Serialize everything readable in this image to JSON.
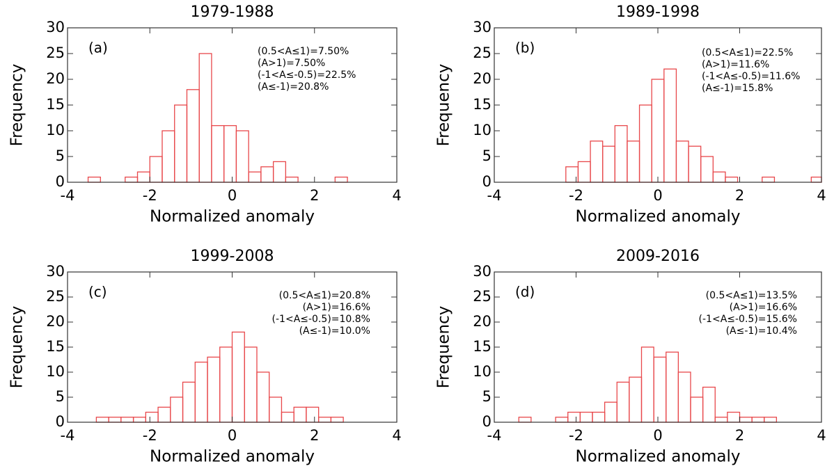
{
  "chart_data": [
    {
      "type": "histogram",
      "title": "1979-1988",
      "panel_label": "(a)",
      "x_label": "Normalized anomaly",
      "y_label": "Frequency",
      "annotations": [
        "(0.5<A≤1)=7.50%",
        "(A>1)=7.50%",
        "(-1<A≤-0.5)=22.5%",
        "(A≤-1)=20.8%"
      ],
      "bins": [
        -3.5,
        -3.2,
        -2.9,
        -2.6,
        -2.3,
        -2.0,
        -1.7,
        -1.4,
        -1.1,
        -0.8,
        -0.5,
        -0.2,
        0.1,
        0.4,
        0.7,
        1.0,
        1.3,
        1.6,
        1.9,
        2.2,
        2.5,
        2.8
      ],
      "values": [
        1,
        0,
        0,
        1,
        2,
        5,
        10,
        15,
        18,
        25,
        11,
        11,
        10,
        2,
        3,
        4,
        1,
        0,
        0,
        0,
        1
      ],
      "color": "#e8474a",
      "xlim": [
        -4,
        4
      ],
      "ylim": [
        0,
        30
      ],
      "xticks": [
        -4,
        -2,
        0,
        2,
        4
      ],
      "yticks": [
        0,
        5,
        10,
        15,
        20,
        25,
        30
      ]
    },
    {
      "type": "histogram",
      "title": "1989-1998",
      "panel_label": "(b)",
      "x_label": "Normalized anomaly",
      "y_label": "Frequency",
      "annotations": [
        "(0.5<A≤1)=22.5%",
        "(A>1)=11.6%",
        "(-1<A≤-0.5)=11.6%",
        "(A≤-1)=15.8%"
      ],
      "bins": [
        -2.25,
        -1.95,
        -1.65,
        -1.35,
        -1.05,
        -0.75,
        -0.45,
        -0.15,
        0.15,
        0.45,
        0.75,
        1.05,
        1.35,
        1.65,
        1.95,
        2.25,
        2.55,
        2.85,
        3.15,
        3.45,
        3.75,
        4.0
      ],
      "values": [
        3,
        4,
        8,
        7,
        11,
        8,
        15,
        20,
        22,
        8,
        7,
        5,
        2,
        1,
        0,
        0,
        1,
        0,
        0,
        0,
        1
      ],
      "color": "#e8474a",
      "xlim": [
        -4,
        4
      ],
      "ylim": [
        0,
        30
      ],
      "xticks": [
        -4,
        -2,
        0,
        2,
        4
      ],
      "yticks": [
        0,
        5,
        10,
        15,
        20,
        25,
        30
      ]
    },
    {
      "type": "histogram",
      "title": "1999-2008",
      "panel_label": "(c)",
      "x_label": "Normalized anomaly",
      "y_label": "Frequency",
      "annotations": [
        "(0.5<A≤1)=20.8%",
        "(A>1)=16.6%",
        "(-1<A≤-0.5)=10.8%",
        "(A≤-1)=10.0%"
      ],
      "bins": [
        -3.3,
        -3.0,
        -2.7,
        -2.4,
        -2.1,
        -1.8,
        -1.5,
        -1.2,
        -0.9,
        -0.6,
        -0.3,
        0.0,
        0.3,
        0.6,
        0.9,
        1.2,
        1.5,
        1.8,
        2.1,
        2.4,
        2.7
      ],
      "values": [
        1,
        1,
        1,
        1,
        2,
        3,
        5,
        8,
        12,
        13,
        15,
        18,
        15,
        10,
        5,
        2,
        3,
        3,
        1,
        1
      ],
      "color": "#e8474a",
      "xlim": [
        -4,
        4
      ],
      "ylim": [
        0,
        30
      ],
      "xticks": [
        -4,
        -2,
        0,
        2,
        4
      ],
      "yticks": [
        0,
        5,
        10,
        15,
        20,
        25,
        30
      ]
    },
    {
      "type": "histogram",
      "title": "2009-2016",
      "panel_label": "(d)",
      "x_label": "Normalized anomaly",
      "y_label": "Frequency",
      "annotations": [
        "(0.5<A≤1)=13.5%",
        "(A>1)=16.6%",
        "(-1<A≤-0.5)=15.6%",
        "(A≤-1)=10.4%"
      ],
      "bins": [
        -3.4,
        -3.1,
        -2.8,
        -2.5,
        -2.2,
        -1.9,
        -1.6,
        -1.3,
        -1.0,
        -0.7,
        -0.4,
        -0.1,
        0.2,
        0.5,
        0.8,
        1.1,
        1.4,
        1.7,
        2.0,
        2.3,
        2.6,
        2.9
      ],
      "values": [
        1,
        0,
        0,
        1,
        2,
        2,
        2,
        4,
        8,
        9,
        15,
        13,
        14,
        10,
        5,
        7,
        1,
        2,
        1,
        1,
        1
      ],
      "color": "#e8474a",
      "xlim": [
        -4,
        4
      ],
      "ylim": [
        0,
        30
      ],
      "xticks": [
        -4,
        -2,
        0,
        2,
        4
      ],
      "yticks": [
        0,
        5,
        10,
        15,
        20,
        25,
        30
      ]
    }
  ]
}
